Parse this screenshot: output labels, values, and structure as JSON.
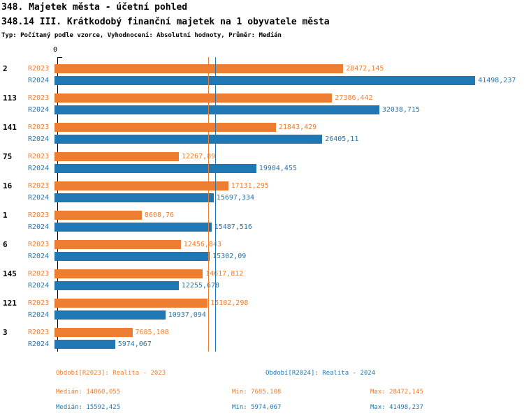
{
  "header": {
    "title1": "348. Majetek města - účetní pohled",
    "title2": "348.14 III. Krátkodobý finanční majetek na 1 obyvatele města",
    "subtitle": "Typ: Počítaný podle vzorce, Vyhodnocení: Absolutní hodnoty, Průměr: Medián"
  },
  "chart_data": {
    "type": "bar",
    "orientation": "horizontal",
    "title": "348.14 III. Krátkodobý finanční majetek na 1 obyvatele města",
    "categories": [
      "2",
      "113",
      "141",
      "75",
      "16",
      "1",
      "6",
      "145",
      "121",
      "3"
    ],
    "series": [
      {
        "name": "R2023",
        "color": "#ED7D31",
        "values": [
          28472.145,
          27386.442,
          21843.429,
          12267.89,
          17131.295,
          8608.76,
          12456.843,
          14617.812,
          15102.298,
          7685.108
        ],
        "labels": [
          "28472,145",
          "27386,442",
          "21843,429",
          "12267,89",
          "17131,295",
          "8608,76",
          "12456,843",
          "14617,812",
          "15102,298",
          "7685,108"
        ]
      },
      {
        "name": "R2024",
        "color": "#1F77B4",
        "values": [
          41498.237,
          32038.715,
          26405.11,
          19904.455,
          15697.334,
          15487.516,
          15302.09,
          12255.678,
          10937.094,
          5974.067
        ],
        "labels": [
          "41498,237",
          "32038,715",
          "26405,11",
          "19904,455",
          "15697,334",
          "15487,516",
          "15302,09",
          "12255,678",
          "10937,094",
          "5974,067"
        ]
      }
    ],
    "x_axis": {
      "origin_label": "0",
      "min": 0,
      "max": 45000
    },
    "reference_lines": [
      {
        "name": "median-r2023",
        "value": 14860.055,
        "color": "#ED7D31"
      },
      {
        "name": "median-r2024",
        "value": 15592.425,
        "color": "#1F77B4"
      }
    ],
    "legend_position": "bottom",
    "grid": false
  },
  "legend": {
    "r2023_period": "Období[R2023]: Realita - 2023",
    "r2024_period": "Období[R2024]: Realita - 2024",
    "r2023_median": "Medián: 14860,055",
    "r2023_min": "Min: 7685,108",
    "r2023_max": "Max: 28472,145",
    "r2024_median": "Medián: 15592,425",
    "r2024_min": "Min: 5974,067",
    "r2024_max": "Max: 41498,237"
  }
}
